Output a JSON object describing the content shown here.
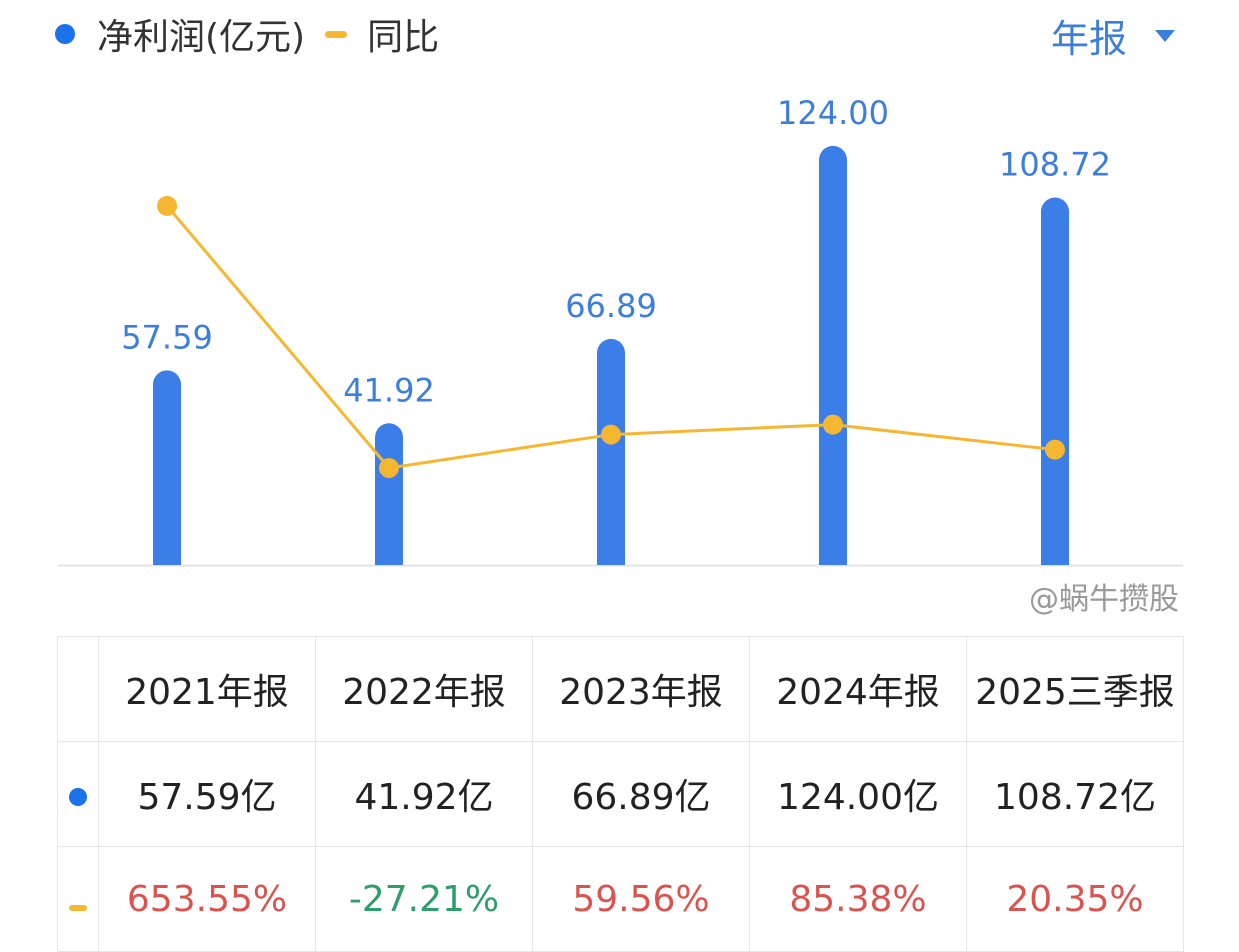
{
  "legend": {
    "series1": "净利润(亿元)",
    "series2": "同比"
  },
  "period_selector": "年报",
  "colors": {
    "bar": "#3b7ee8",
    "line": "#f5b731",
    "positive": "#d9534f",
    "negative": "#2e9e6b"
  },
  "chart_data": {
    "type": "bar+line",
    "categories": [
      "2021年报",
      "2022年报",
      "2023年报",
      "2024年报",
      "2025三季报"
    ],
    "series": [
      {
        "name": "净利润(亿元)",
        "type": "bar",
        "values": [
          57.59,
          41.92,
          66.89,
          124.0,
          108.72
        ],
        "labels": [
          "57.59",
          "41.92",
          "66.89",
          "124.00",
          "108.72"
        ]
      },
      {
        "name": "同比",
        "type": "line",
        "values": [
          653.55,
          -27.21,
          59.56,
          85.38,
          20.35
        ]
      }
    ]
  },
  "table": {
    "headers": [
      "2021年报",
      "2022年报",
      "2023年报",
      "2024年报",
      "2025三季报"
    ],
    "profit_row": [
      "57.59亿",
      "41.92亿",
      "66.89亿",
      "124.00亿",
      "108.72亿"
    ],
    "yoy_row": [
      "653.55%",
      "-27.21%",
      "59.56%",
      "85.38%",
      "20.35%"
    ]
  },
  "watermark": "@蜗牛攒股"
}
